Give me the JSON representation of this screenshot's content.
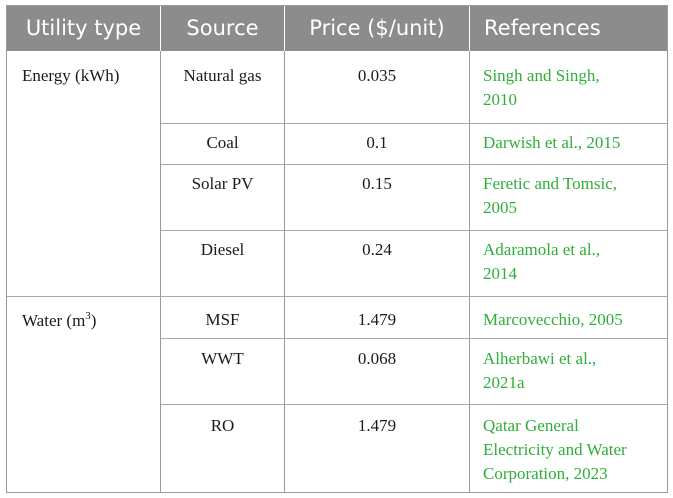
{
  "headers": [
    "Utility type",
    "Source",
    "Price ($/unit)",
    "References"
  ],
  "groups": [
    {
      "label": "Energy (kWh)"
    },
    {
      "label": "Water (m",
      "sup": "3",
      "close": ")"
    }
  ],
  "rows": [
    {
      "source": "Natural gas",
      "price": "0.035",
      "ref1": "Singh and Singh,",
      "ref2": "2010"
    },
    {
      "source": "Coal",
      "price": "0.1",
      "ref1": "Darwish et al., 2015"
    },
    {
      "source": "Solar PV",
      "price": "0.15",
      "ref1": "Feretic and Tomsic,",
      "ref2": "2005"
    },
    {
      "source": "Diesel",
      "price": "0.24",
      "ref1": "Adaramola et al.,",
      "ref2": "2014"
    },
    {
      "source": "MSF",
      "price": "1.479",
      "ref1": "Marcovecchio, 2005"
    },
    {
      "source": "WWT",
      "price": "0.068",
      "ref1": "Alherbawi et al.,",
      "ref2": "2021a"
    },
    {
      "source": "RO",
      "price": "1.479",
      "ref1": "Qatar General",
      "ref2": "Electricity and Water",
      "ref3": "Corporation, 2023"
    }
  ],
  "colors": {
    "header_bg": "#8c8c8c",
    "reference_text": "#2fae3a",
    "border": "#9a9a9a"
  }
}
